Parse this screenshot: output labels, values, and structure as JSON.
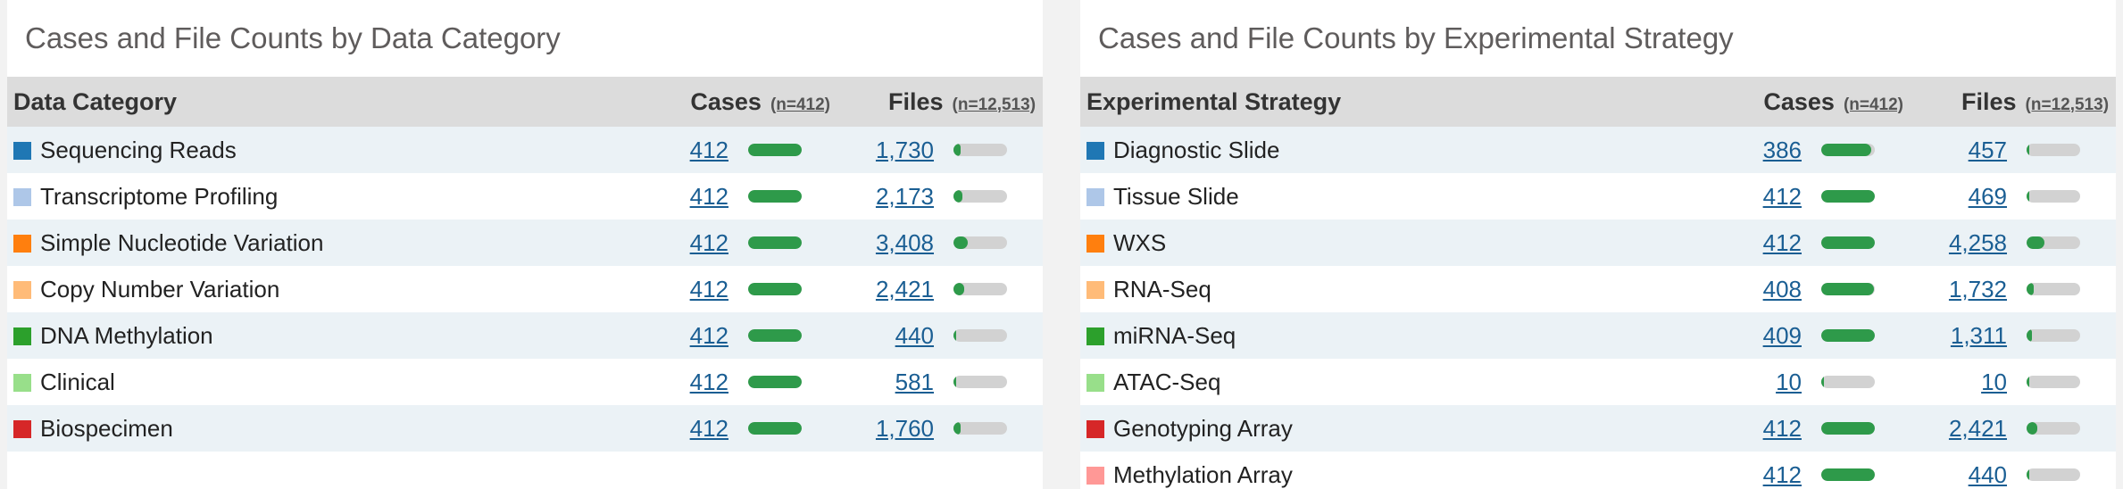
{
  "left": {
    "title": "Cases and File Counts by Data Category",
    "headers": {
      "category": "Data Category",
      "cases": "Cases",
      "cases_n": "(n=412)",
      "files": "Files",
      "files_n": "(n=12,513)"
    },
    "rows": [
      {
        "label": "Sequencing Reads",
        "color": "#1f77b4",
        "cases": "412",
        "files": "1,730",
        "cases_frac": 1.0,
        "files_frac": 0.138
      },
      {
        "label": "Transcriptome Profiling",
        "color": "#aec7e8",
        "cases": "412",
        "files": "2,173",
        "cases_frac": 1.0,
        "files_frac": 0.174
      },
      {
        "label": "Simple Nucleotide Variation",
        "color": "#ff7f0e",
        "cases": "412",
        "files": "3,408",
        "cases_frac": 1.0,
        "files_frac": 0.272
      },
      {
        "label": "Copy Number Variation",
        "color": "#ffbb78",
        "cases": "412",
        "files": "2,421",
        "cases_frac": 1.0,
        "files_frac": 0.193
      },
      {
        "label": "DNA Methylation",
        "color": "#2ca02c",
        "cases": "412",
        "files": "440",
        "cases_frac": 1.0,
        "files_frac": 0.035
      },
      {
        "label": "Clinical",
        "color": "#98df8a",
        "cases": "412",
        "files": "581",
        "cases_frac": 1.0,
        "files_frac": 0.046
      },
      {
        "label": "Biospecimen",
        "color": "#d62728",
        "cases": "412",
        "files": "1,760",
        "cases_frac": 1.0,
        "files_frac": 0.141
      }
    ]
  },
  "right": {
    "title": "Cases and File Counts by Experimental Strategy",
    "headers": {
      "category": "Experimental Strategy",
      "cases": "Cases",
      "cases_n": "(n=412)",
      "files": "Files",
      "files_n": "(n=12,513)"
    },
    "rows": [
      {
        "label": "Diagnostic Slide",
        "color": "#1f77b4",
        "cases": "386",
        "files": "457",
        "cases_frac": 0.937,
        "files_frac": 0.037
      },
      {
        "label": "Tissue Slide",
        "color": "#aec7e8",
        "cases": "412",
        "files": "469",
        "cases_frac": 1.0,
        "files_frac": 0.037
      },
      {
        "label": "WXS",
        "color": "#ff7f0e",
        "cases": "412",
        "files": "4,258",
        "cases_frac": 1.0,
        "files_frac": 0.34
      },
      {
        "label": "RNA-Seq",
        "color": "#ffbb78",
        "cases": "408",
        "files": "1,732",
        "cases_frac": 0.99,
        "files_frac": 0.138
      },
      {
        "label": "miRNA-Seq",
        "color": "#2ca02c",
        "cases": "409",
        "files": "1,311",
        "cases_frac": 0.993,
        "files_frac": 0.105
      },
      {
        "label": "ATAC-Seq",
        "color": "#98df8a",
        "cases": "10",
        "files": "10",
        "cases_frac": 0.024,
        "files_frac": 0.001
      },
      {
        "label": "Genotyping Array",
        "color": "#d62728",
        "cases": "412",
        "files": "2,421",
        "cases_frac": 1.0,
        "files_frac": 0.193
      },
      {
        "label": "Methylation Array",
        "color": "#ff9896",
        "cases": "412",
        "files": "440",
        "cases_frac": 1.0,
        "files_frac": 0.035
      }
    ]
  }
}
